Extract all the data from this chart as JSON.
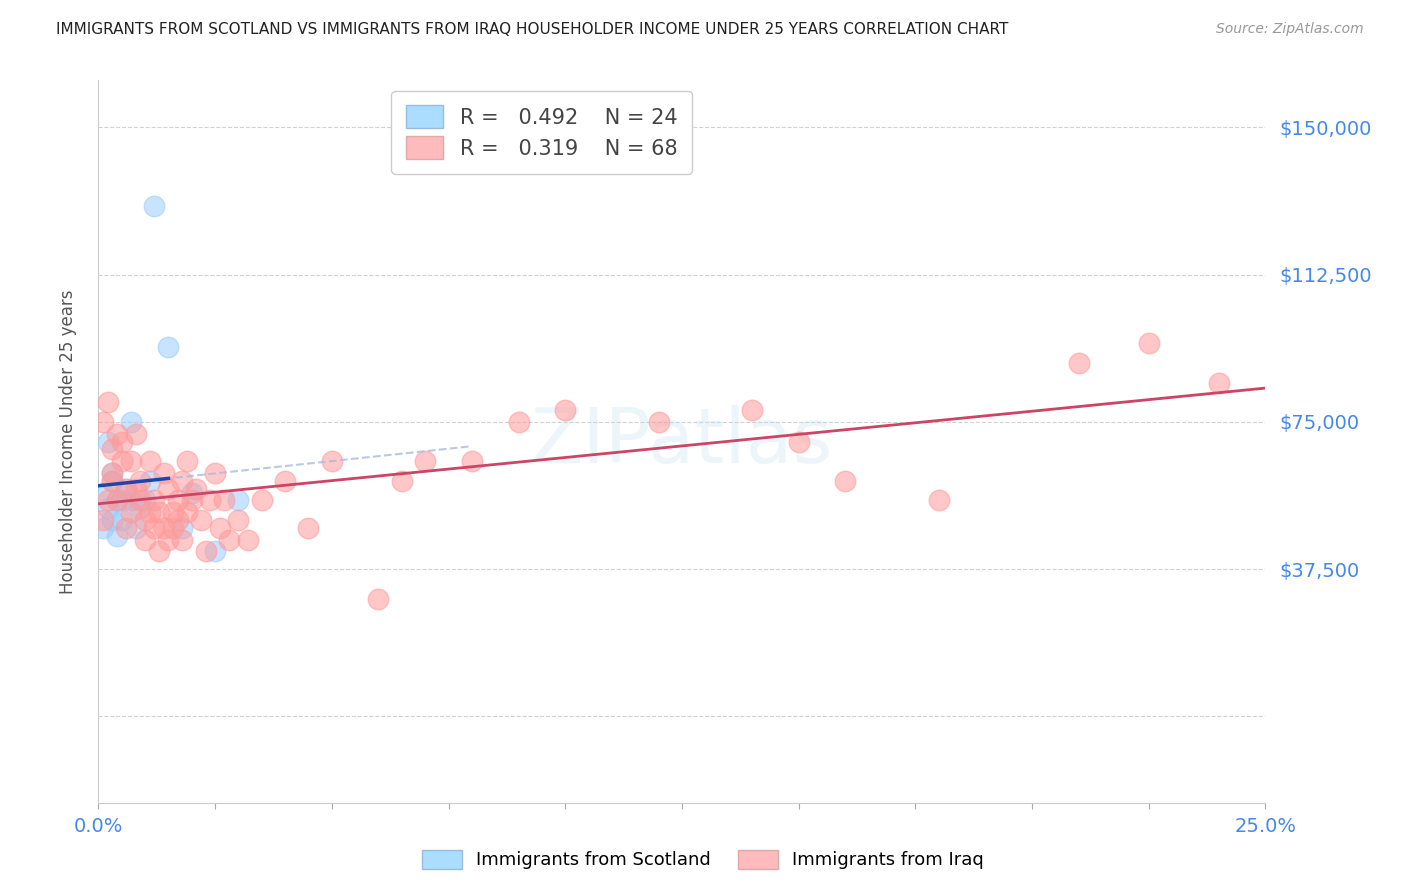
{
  "title": "IMMIGRANTS FROM SCOTLAND VS IMMIGRANTS FROM IRAQ HOUSEHOLDER INCOME UNDER 25 YEARS CORRELATION CHART",
  "source": "Source: ZipAtlas.com",
  "ylabel": "Householder Income Under 25 years",
  "R_scotland": 0.492,
  "N_scotland": 24,
  "R_iraq": 0.319,
  "N_iraq": 68,
  "scotland_marker_color": "#99CCFF",
  "iraq_marker_color": "#FF9999",
  "reg_scotland_color": "#2244AA",
  "reg_iraq_color": "#CC4466",
  "dashed_line_color": "#AABBDD",
  "ytick_color": "#4488EE",
  "xtick_color": "#4488EE",
  "grid_color": "#CCCCCC",
  "bg_color": "#FFFFFF",
  "title_color": "#222222",
  "source_color": "#999999",
  "ylabel_color": "#555555",
  "watermark_color": "#BBDDEE",
  "xlim_min": 0.0,
  "xlim_max": 0.25,
  "ylim_min": -22000,
  "ylim_max": 162000,
  "ytick_vals": [
    0,
    37500,
    75000,
    112500,
    150000
  ],
  "xtick_vals": [
    0.0,
    0.025,
    0.05,
    0.075,
    0.1,
    0.125,
    0.15,
    0.175,
    0.2,
    0.225,
    0.25
  ],
  "legend_label_scotland": "Immigrants from Scotland",
  "legend_label_iraq": "Immigrants from Iraq",
  "scotland_x": [
    0.001,
    0.001,
    0.002,
    0.002,
    0.003,
    0.003,
    0.003,
    0.004,
    0.004,
    0.005,
    0.005,
    0.006,
    0.007,
    0.007,
    0.008,
    0.009,
    0.01,
    0.011,
    0.012,
    0.015,
    0.018,
    0.02,
    0.025,
    0.03
  ],
  "scotland_y": [
    57000,
    48000,
    70000,
    53000,
    62000,
    50000,
    60000,
    55000,
    46000,
    50000,
    55000,
    58000,
    75000,
    55000,
    48000,
    53000,
    55000,
    60000,
    130000,
    94000,
    48000,
    57000,
    42000,
    55000
  ],
  "iraq_x": [
    0.001,
    0.001,
    0.002,
    0.002,
    0.003,
    0.003,
    0.003,
    0.004,
    0.004,
    0.005,
    0.005,
    0.006,
    0.006,
    0.007,
    0.007,
    0.008,
    0.008,
    0.009,
    0.009,
    0.01,
    0.01,
    0.011,
    0.011,
    0.012,
    0.012,
    0.013,
    0.013,
    0.014,
    0.014,
    0.015,
    0.015,
    0.016,
    0.016,
    0.017,
    0.017,
    0.018,
    0.018,
    0.019,
    0.019,
    0.02,
    0.021,
    0.022,
    0.023,
    0.024,
    0.025,
    0.026,
    0.027,
    0.028,
    0.03,
    0.032,
    0.035,
    0.04,
    0.045,
    0.05,
    0.06,
    0.065,
    0.07,
    0.08,
    0.09,
    0.1,
    0.12,
    0.14,
    0.15,
    0.16,
    0.18,
    0.21,
    0.225,
    0.24
  ],
  "iraq_y": [
    75000,
    50000,
    55000,
    80000,
    68000,
    60000,
    62000,
    72000,
    55000,
    65000,
    70000,
    58000,
    48000,
    52000,
    65000,
    58000,
    72000,
    60000,
    55000,
    45000,
    50000,
    52000,
    65000,
    48000,
    55000,
    42000,
    52000,
    48000,
    62000,
    58000,
    45000,
    52000,
    48000,
    55000,
    50000,
    45000,
    60000,
    52000,
    65000,
    55000,
    58000,
    50000,
    42000,
    55000,
    62000,
    48000,
    55000,
    45000,
    50000,
    45000,
    55000,
    60000,
    48000,
    65000,
    30000,
    60000,
    65000,
    65000,
    75000,
    78000,
    75000,
    78000,
    70000,
    60000,
    55000,
    90000,
    95000,
    85000
  ]
}
